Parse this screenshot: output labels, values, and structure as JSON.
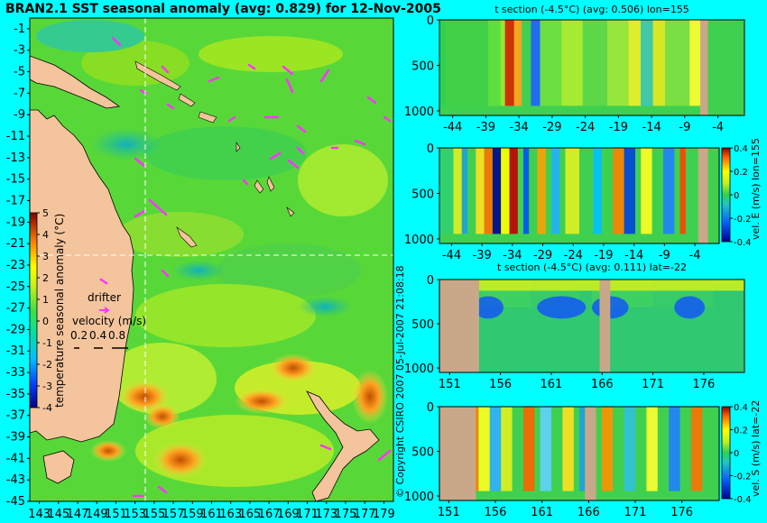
{
  "figure": {
    "copyright": "© Copyright CSIRO 2007  05-Jul-2007 21:08:18",
    "colors": {
      "background": "#00ffff",
      "land": "#f4c49c",
      "section_land": "#c8a888",
      "vectors": "#ff33ff",
      "crosshair": "#ffffff"
    }
  },
  "chart_data": [
    {
      "id": "map",
      "type": "heatmap",
      "title": "BRAN2.1 SST seasonal anomaly (avg: 0.829) for 12-Nov-2005",
      "x_ticks": [
        "143",
        "145",
        "147",
        "149",
        "151",
        "153",
        "155",
        "157",
        "159",
        "161",
        "163",
        "165",
        "167",
        "169",
        "171",
        "173",
        "175",
        "177",
        "179"
      ],
      "y_ticks": [
        "-1",
        "-3",
        "-5",
        "-7",
        "-9",
        "-11",
        "-13",
        "-15",
        "-17",
        "-19",
        "-21",
        "-23",
        "-25",
        "-27",
        "-29",
        "-31",
        "-33",
        "-35",
        "-37",
        "-39",
        "-41",
        "-43",
        "-45"
      ],
      "xlim": [
        142,
        180
      ],
      "ylim": [
        -45,
        0
      ],
      "crosshair": {
        "lon": 155,
        "lat": -22
      },
      "colorbar": {
        "label": "temperature seasonal anomaly (°C)",
        "ticks": [
          "5",
          "4",
          "3",
          "2",
          "1",
          "0",
          "-1",
          "-2",
          "-3",
          "-4"
        ],
        "range": [
          -4,
          5
        ]
      },
      "legend": {
        "drifter_label": "drifter",
        "velocity_label": "velocity (m/s)",
        "velocity_ticks": [
          "0.2",
          "0.4",
          "0.8"
        ]
      }
    },
    {
      "id": "section1",
      "type": "heatmap",
      "title": "t section (-4.5°C) (avg: 0.506) lon=155",
      "x_ticks": [
        "-44",
        "-39",
        "-34",
        "-29",
        "-24",
        "-19",
        "-14",
        "-9",
        "-4"
      ],
      "y_ticks": [
        "0",
        "500",
        "1000"
      ],
      "xlim": [
        -46,
        0
      ],
      "ylim": [
        1050,
        0
      ]
    },
    {
      "id": "section2",
      "type": "heatmap",
      "title": "",
      "x_ticks": [
        "-44",
        "-39",
        "-34",
        "-29",
        "-24",
        "-19",
        "-14",
        "-9",
        "-4"
      ],
      "y_ticks": [
        "0",
        "500",
        "1000"
      ],
      "xlim": [
        -46,
        0
      ],
      "ylim": [
        1050,
        0
      ],
      "colorbar": {
        "label": "vel. E (m/s) lon=155",
        "ticks": [
          "0.4",
          "0.2",
          "0",
          "-0.2",
          "-0.4"
        ],
        "range": [
          -0.4,
          0.4
        ]
      }
    },
    {
      "id": "section3",
      "type": "heatmap",
      "title": "t section (-4.5°C) (avg: 0.111) lat=-22",
      "x_ticks": [
        "151",
        "156",
        "161",
        "166",
        "171",
        "176"
      ],
      "y_ticks": [
        "0",
        "500",
        "1000"
      ],
      "xlim": [
        150,
        180
      ],
      "ylim": [
        1050,
        0
      ]
    },
    {
      "id": "section4",
      "type": "heatmap",
      "title": "",
      "x_ticks": [
        "151",
        "156",
        "161",
        "166",
        "171",
        "176"
      ],
      "y_ticks": [
        "0",
        "500",
        "1000"
      ],
      "xlim": [
        150,
        180
      ],
      "ylim": [
        1050,
        0
      ],
      "colorbar": {
        "label": "vel. S (m/s) lat=-22",
        "ticks": [
          "0.4",
          "0.2",
          "0",
          "-0.2",
          "-0.4"
        ],
        "range": [
          -0.4,
          0.4
        ]
      }
    }
  ]
}
